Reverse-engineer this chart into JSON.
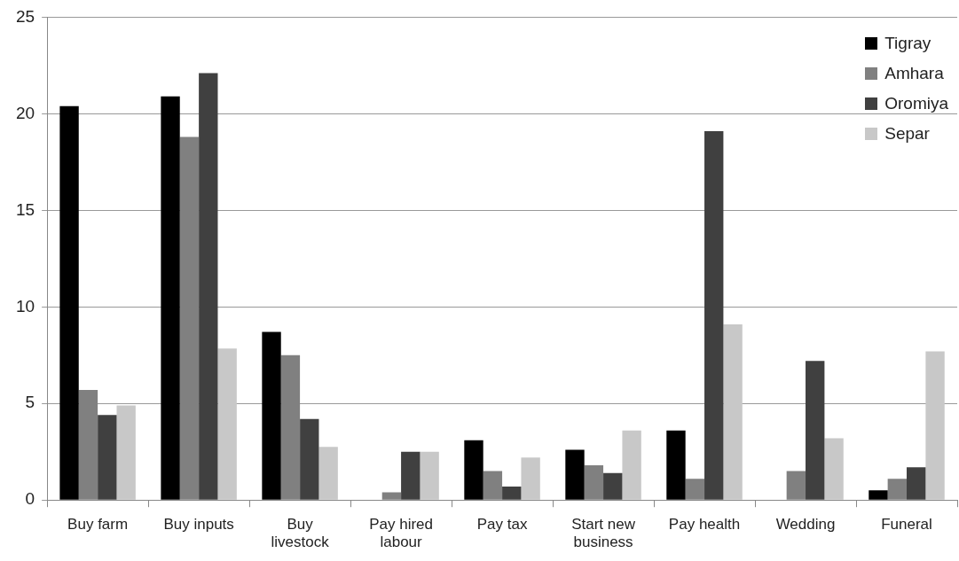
{
  "chart_data": {
    "type": "bar",
    "categories": [
      "Buy farm",
      "Buy inputs",
      "Buy livestock",
      "Pay hired labour",
      "Pay tax",
      "Start new business",
      "Pay health",
      "Wedding",
      "Funeral"
    ],
    "series": [
      {
        "name": "Tigray",
        "color": "#000000",
        "values": [
          20.4,
          20.9,
          8.7,
          0,
          3.1,
          2.6,
          3.6,
          0,
          0.5
        ]
      },
      {
        "name": "Amhara",
        "color": "#808080",
        "values": [
          5.7,
          18.8,
          7.5,
          0.4,
          1.5,
          1.8,
          1.1,
          1.5,
          1.1
        ]
      },
      {
        "name": "Oromiya",
        "color": "#404040",
        "values": [
          4.4,
          22.1,
          4.2,
          2.5,
          0.7,
          1.4,
          19.1,
          7.2,
          1.7
        ]
      },
      {
        "name": "Separ",
        "color": "#c8c8c8",
        "values": [
          4.9,
          7.85,
          2.75,
          2.5,
          2.2,
          3.6,
          9.1,
          3.2,
          7.7
        ]
      }
    ],
    "ylim": [
      0,
      25
    ],
    "yticks": [
      0,
      5,
      10,
      15,
      20,
      25
    ],
    "grid": "y",
    "legend": "top right"
  }
}
